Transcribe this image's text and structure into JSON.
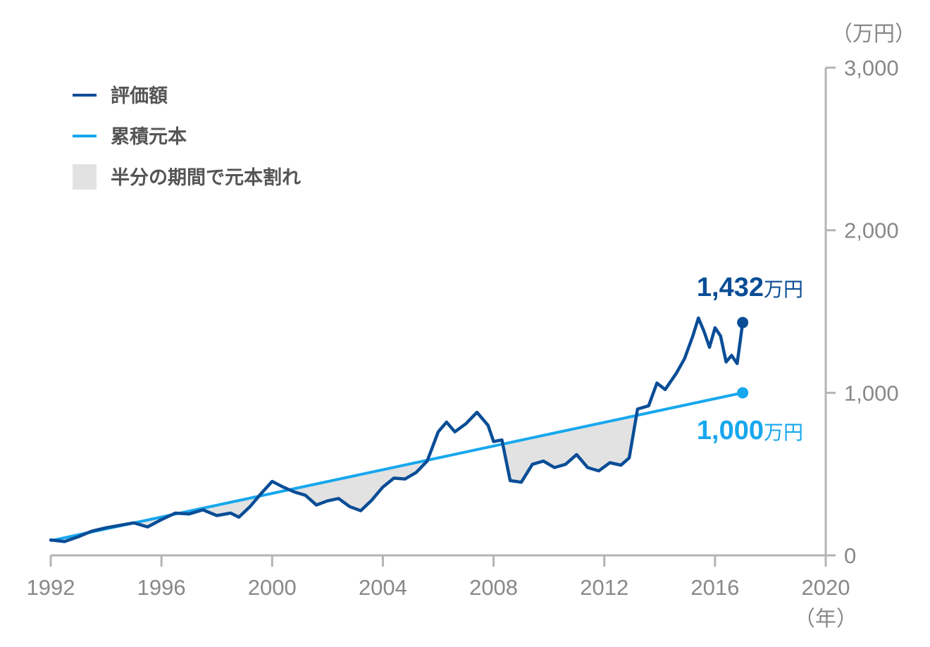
{
  "chart_data": {
    "type": "line",
    "x_unit": "（年）",
    "y_unit": "（万円）",
    "xlim": [
      1992,
      2020
    ],
    "ylim": [
      0,
      3000
    ],
    "x_ticks": [
      1992,
      1996,
      2000,
      2004,
      2008,
      2012,
      2016,
      2020
    ],
    "x_tick_labels": [
      "1992",
      "1996",
      "2000",
      "2004",
      "2008",
      "2012",
      "2016",
      "2020"
    ],
    "y_ticks": [
      0,
      1000,
      2000,
      3000
    ],
    "y_tick_labels": [
      "0",
      "1,000",
      "2,000",
      "3,000"
    ],
    "grid": false,
    "legend_position": "top-left",
    "colors": {
      "valuation": "#0a4d96",
      "principal": "#17a7ee",
      "underwater": "#e2e2e2",
      "axis": "#b4b4b4"
    },
    "series": [
      {
        "name": "評価額",
        "role": "valuation",
        "x": [
          1992.0,
          1992.5,
          1993.0,
          1993.5,
          1994.0,
          1994.5,
          1995.0,
          1995.5,
          1996.0,
          1996.5,
          1997.0,
          1997.5,
          1998.0,
          1998.5,
          1998.8,
          1999.2,
          1999.6,
          2000.0,
          2000.4,
          2000.8,
          2001.2,
          2001.6,
          2002.0,
          2002.4,
          2002.8,
          2003.2,
          2003.6,
          2004.0,
          2004.4,
          2004.8,
          2005.2,
          2005.6,
          2006.0,
          2006.3,
          2006.6,
          2007.0,
          2007.4,
          2007.8,
          2008.0,
          2008.3,
          2008.6,
          2009.0,
          2009.4,
          2009.8,
          2010.2,
          2010.6,
          2011.0,
          2011.4,
          2011.8,
          2012.2,
          2012.6,
          2012.9,
          2013.2,
          2013.6,
          2013.9,
          2014.2,
          2014.6,
          2014.9,
          2015.2,
          2015.4,
          2015.6,
          2015.8,
          2016.0,
          2016.2,
          2016.4,
          2016.6,
          2016.8,
          2017.0
        ],
        "values": [
          95,
          85,
          115,
          150,
          170,
          185,
          200,
          175,
          220,
          260,
          255,
          280,
          245,
          260,
          235,
          300,
          380,
          455,
          420,
          390,
          370,
          310,
          335,
          350,
          300,
          275,
          340,
          420,
          475,
          470,
          510,
          580,
          760,
          820,
          760,
          810,
          880,
          800,
          700,
          710,
          460,
          450,
          560,
          580,
          540,
          560,
          620,
          540,
          520,
          570,
          555,
          600,
          900,
          920,
          1060,
          1020,
          1120,
          1210,
          1350,
          1460,
          1380,
          1280,
          1400,
          1350,
          1190,
          1230,
          1180,
          1432
        ]
      },
      {
        "name": "累積元本",
        "role": "principal",
        "x": [
          1992,
          2017
        ],
        "values": [
          90,
          1000
        ]
      }
    ],
    "shaded_label": "半分の期間で元本割れ",
    "annotations": [
      {
        "series": "valuation",
        "value_text": "1,432",
        "unit_text": "万円"
      },
      {
        "series": "principal",
        "value_text": "1,000",
        "unit_text": "万円"
      }
    ]
  }
}
